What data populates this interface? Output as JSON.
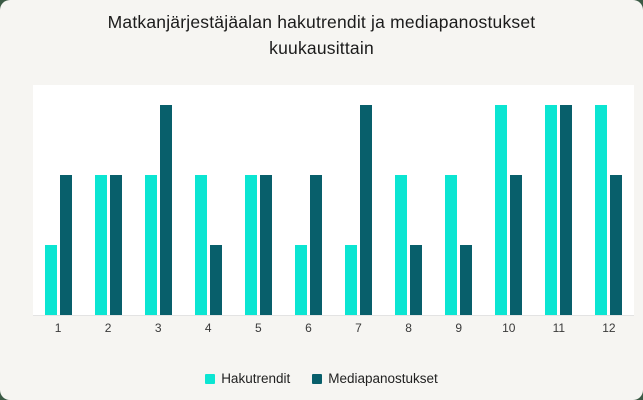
{
  "card": {
    "background": "#f6f5f2",
    "plot_background": "#ffffff",
    "corner_background": "#3b5a45",
    "axis_line_color": "#e3e3e3"
  },
  "chart_data": {
    "type": "bar",
    "title": "Matkanjärjestäjäalan hakutrendit ja mediapanostukset kuukausittain",
    "categories": [
      "1",
      "2",
      "3",
      "4",
      "5",
      "6",
      "7",
      "8",
      "9",
      "10",
      "11",
      "12"
    ],
    "series": [
      {
        "name": "Hakutrendit",
        "color": "#0be5d2",
        "values": [
          1,
          2,
          2,
          2,
          2,
          1,
          1,
          2,
          2,
          3,
          3,
          3
        ]
      },
      {
        "name": "Mediapanostukset",
        "color": "#085f6b",
        "values": [
          2,
          2,
          3,
          1,
          2,
          2,
          3,
          1,
          1,
          2,
          3,
          2
        ]
      }
    ],
    "xlabel": "",
    "ylabel": "",
    "ylim": [
      0,
      3.3
    ],
    "grid": false,
    "legend_position": "bottom",
    "value_note": "relative levels estimated from bar heights; no y-axis shown"
  }
}
